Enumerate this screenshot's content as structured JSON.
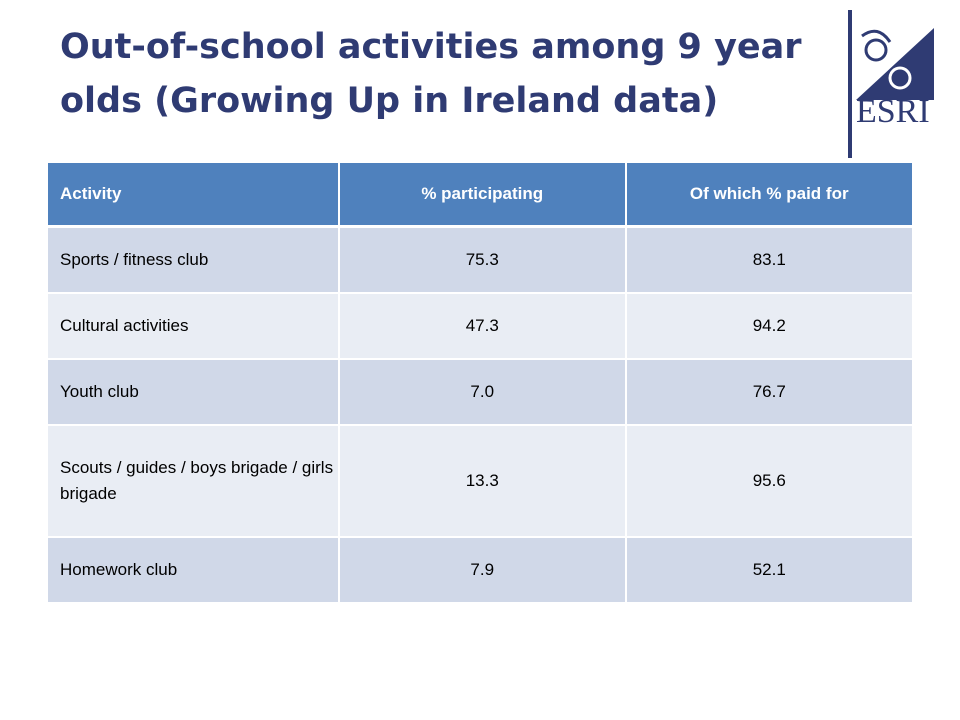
{
  "slide": {
    "title": "Out-of-school activities among 9 year olds (Growing Up in Ireland data)"
  },
  "logo": {
    "text": "ESRI",
    "accent_color": "#2f3b73"
  },
  "table": {
    "headers": [
      "Activity",
      "% participating",
      "Of which % paid for"
    ],
    "rows": [
      {
        "activity": "Sports / fitness club",
        "participating": "75.3",
        "paid": "83.1"
      },
      {
        "activity": "Cultural activities",
        "participating": "47.3",
        "paid": "94.2"
      },
      {
        "activity": "Youth club",
        "participating": "7.0",
        "paid": "76.7"
      },
      {
        "activity": "Scouts / guides / boys brigade / girls brigade",
        "participating": "13.3",
        "paid": "95.6"
      },
      {
        "activity": "Homework club",
        "participating": "7.9",
        "paid": "52.1"
      }
    ],
    "colors": {
      "header": "#4f81bd",
      "row_dark": "#d0d8e8",
      "row_light": "#e9edf4"
    }
  }
}
